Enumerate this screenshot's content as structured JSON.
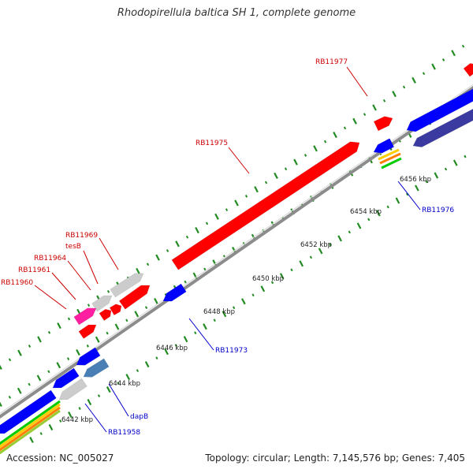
{
  "title": "Rhodopirellula baltica SH 1, complete genome",
  "footer": {
    "accession": "Accession: NC_005027",
    "topology": "Topology: circular; Length: 7,145,576 bp; Genes: 7,405"
  },
  "colors": {
    "forward_cds": "#ff0000",
    "reverse_cds": "#0000ff",
    "other_gene": "#cccccc",
    "dark_gene": "#3a3aa0",
    "steel_gene": "#4a7fb5",
    "magenta_gene": "#ff1fa0",
    "tick": "#228b22",
    "backbone": "#8c8c8c",
    "forward_label": "#cc0000",
    "reverse_label": "#0000cc"
  },
  "scale_ticks": [
    {
      "label": "6442 kbp"
    },
    {
      "label": "6444 kbp"
    },
    {
      "label": "6446 kbp"
    },
    {
      "label": "6448 kbp"
    },
    {
      "label": "6450 kbp"
    },
    {
      "label": "6452 kbp"
    },
    {
      "label": "6454 kbp"
    },
    {
      "label": "6456 kbp"
    }
  ],
  "forward_labels": [
    {
      "text": "RB11977"
    },
    {
      "text": "RB11975"
    },
    {
      "text": "RB11969"
    },
    {
      "text": "tesB"
    },
    {
      "text": "RB11964"
    },
    {
      "text": "RB11961"
    },
    {
      "text": "RB11960"
    }
  ],
  "reverse_labels": [
    {
      "text": "RB11976"
    },
    {
      "text": "RB11973"
    },
    {
      "text": "dapB"
    },
    {
      "text": "RB11958"
    }
  ]
}
